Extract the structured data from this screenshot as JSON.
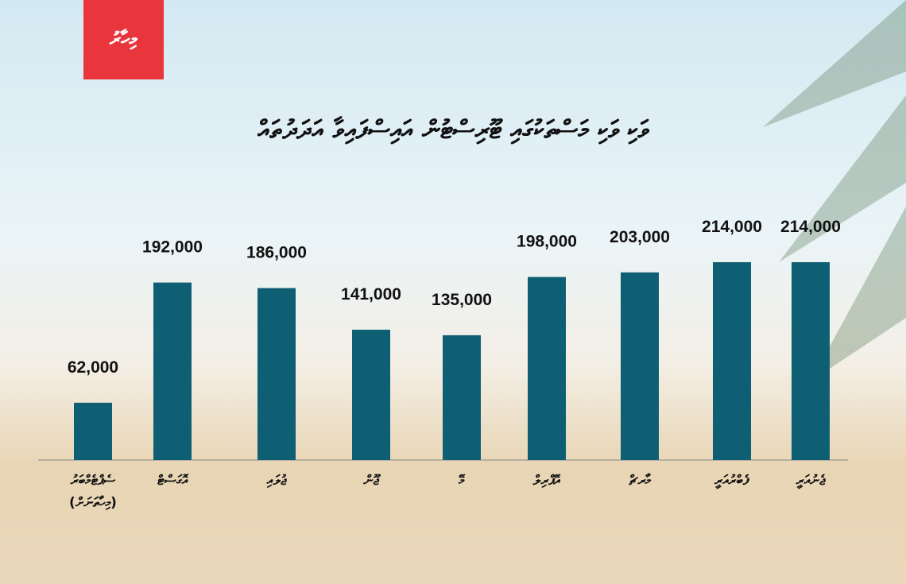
{
  "logo": "މިހާރު",
  "chart_data": {
    "type": "bar",
    "title": "ވަކި ވަކި މަސްތަކުގައި ޓޫރިސްޓުން އައިސްފައިވާ އަދަދުތައް",
    "categories": [
      "ސެޕްޓެމްބަރު (މިހާތަނަށް)",
      "އޮގަސްޓް",
      "ޖުލައި",
      "ޖޫން",
      "މޭ",
      "އޭޕްރިލް",
      "މާރޗް",
      "ފެބްރުއަރީ",
      "ޖެނުއަރީ"
    ],
    "values": [
      62000,
      192000,
      186000,
      141000,
      135000,
      198000,
      203000,
      214000,
      214000
    ],
    "value_labels": [
      "62,000",
      "192,000",
      "186,000",
      "141,000",
      "135,000",
      "198,000",
      "203,000",
      "214,000",
      "214,000"
    ],
    "color": "#0f5f74"
  }
}
